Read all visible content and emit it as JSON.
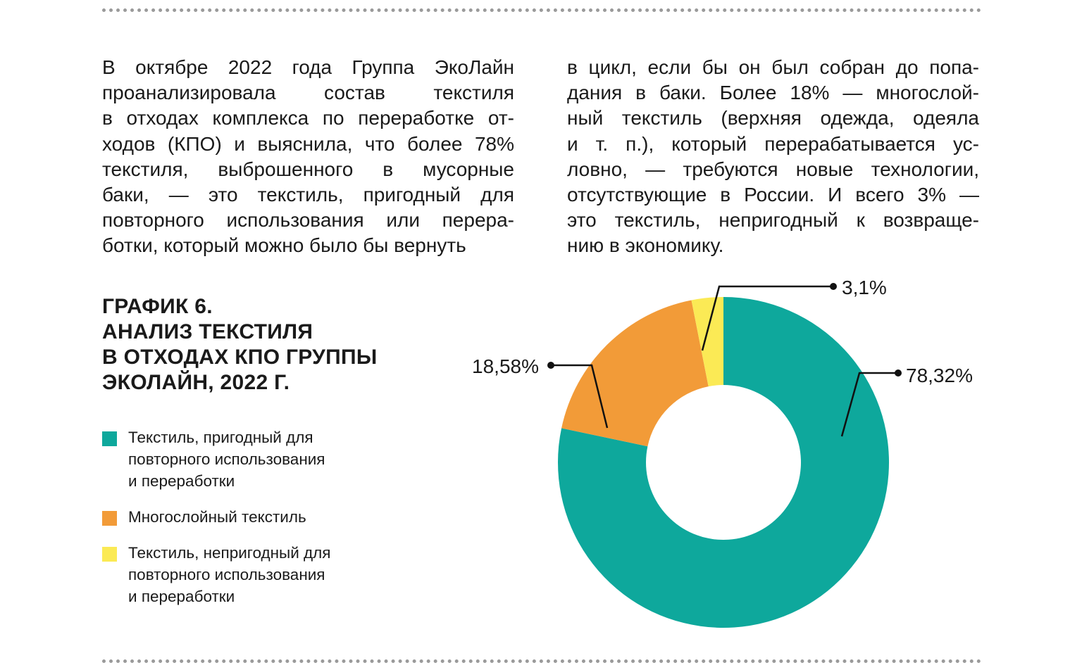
{
  "paragraph_left": [
    "В октябре 2022 года Группа ЭкоЛайн",
    "проанализировала состав текстиля",
    "в отходах комплекса по переработке от-",
    "ходов (КПО) и выяснила, что более 78%",
    "текстиля, выброшенного в мусорные",
    "баки, — это текстиль, пригодный для",
    "повторного использования или перера-",
    "ботки, который можно было бы вернуть"
  ],
  "paragraph_right": [
    "в цикл, если бы он был собран до попа-",
    "дания в баки. Более 18% — многослой-",
    "ный текстиль (верхняя одежда, одеяла",
    "и т. п.), который перерабатывается ус-",
    "ловно, — требуются новые технологии,",
    "отсутствующие в России. И всего 3% —",
    "это текстиль, непригодный к возвраще-",
    "нию в экономику."
  ],
  "chart_data": {
    "type": "pie",
    "variant": "donut",
    "title": [
      "ГРАФИК 6.",
      "АНАЛИЗ ТЕКСТИЛЯ",
      "В ОТХОДАХ КПО ГРУППЫ",
      "ЭКОЛАЙН, 2022 Г."
    ],
    "slices": [
      {
        "name": [
          "Текстиль, пригодный для",
          "повторного использования",
          "и переработки"
        ],
        "value": 78.32,
        "label": "78,32%",
        "color": "#0ea89c"
      },
      {
        "name": [
          "Многослойный текстиль"
        ],
        "value": 18.58,
        "label": "18,58%",
        "color": "#f29b38"
      },
      {
        "name": [
          "Текстиль, непригодный для",
          "повторного использования",
          "и переработки"
        ],
        "value": 3.1,
        "label": "3,1%",
        "color": "#fbea55"
      }
    ],
    "legend_position": "left"
  }
}
